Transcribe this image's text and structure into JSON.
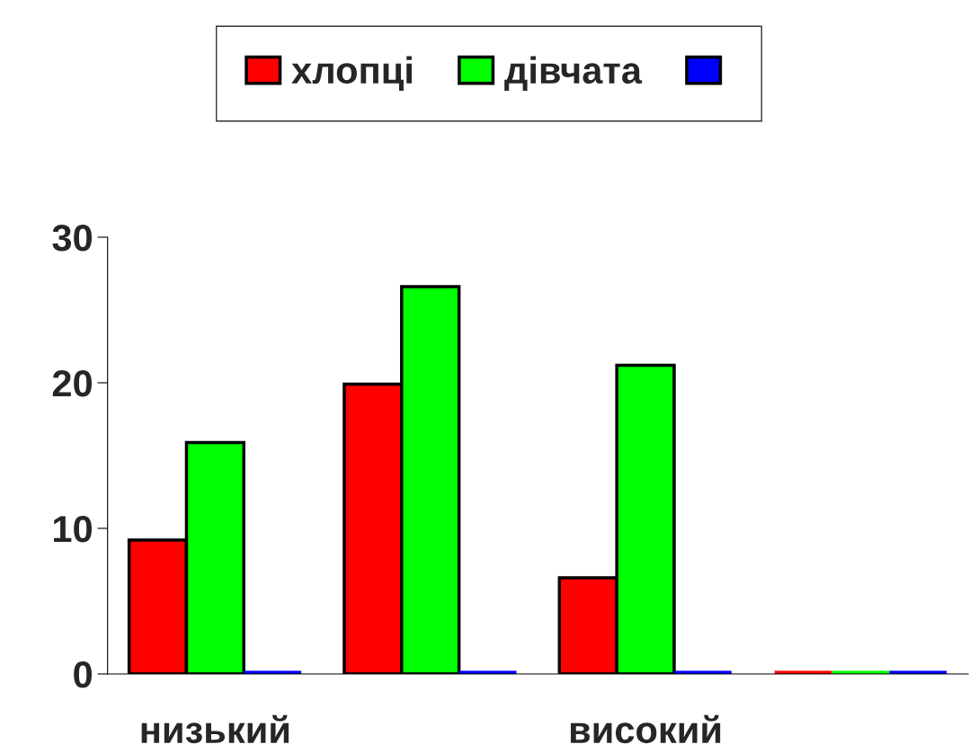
{
  "chart_data": {
    "type": "bar",
    "categories": [
      "низький",
      null,
      "високий",
      null
    ],
    "series": [
      {
        "name": "хлопці",
        "color": "#ff0000",
        "values": [
          9.2,
          19.9,
          6.6,
          0
        ]
      },
      {
        "name": "дівчата",
        "color": "#00ff00",
        "values": [
          15.9,
          26.6,
          21.2,
          0
        ]
      },
      {
        "color": "#0000ff",
        "values": [
          0,
          0,
          0,
          0
        ]
      }
    ],
    "ylim": [
      0,
      30
    ],
    "yticks": [
      0,
      10,
      20,
      30
    ],
    "grid": false,
    "legend": "top"
  }
}
